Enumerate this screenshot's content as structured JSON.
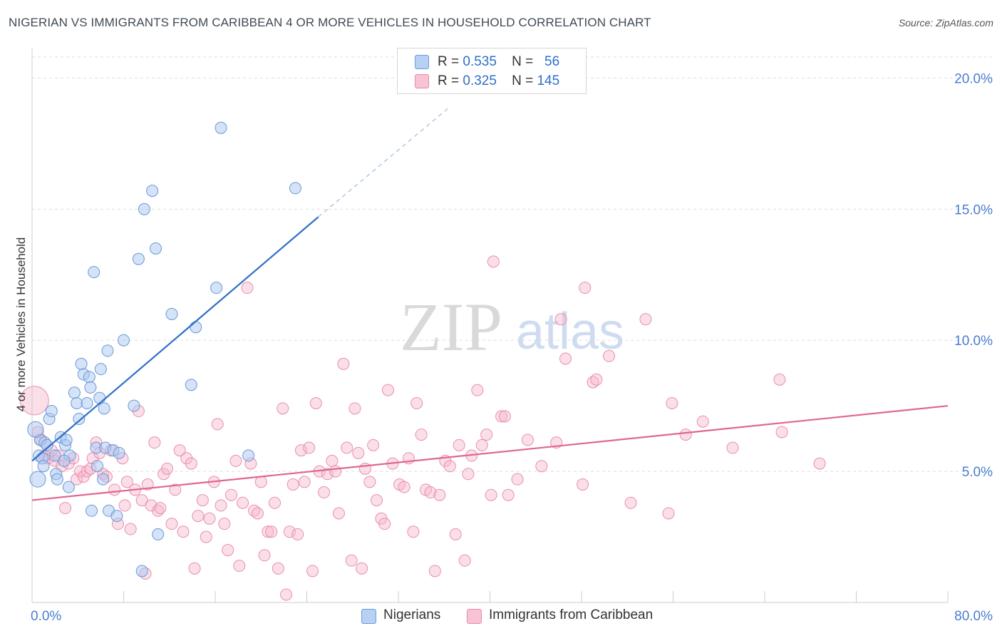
{
  "title": "NIGERIAN VS IMMIGRANTS FROM CARIBBEAN 4 OR MORE VEHICLES IN HOUSEHOLD CORRELATION CHART",
  "source": "Source: ZipAtlas.com",
  "watermark": {
    "zip": "ZIP",
    "atlas": "atlas"
  },
  "legend": {
    "series": [
      {
        "r_label": "R =",
        "r_value": "0.535",
        "n_label": "N =",
        "n_value": "56",
        "color": "#a9c8f0",
        "stroke": "#5b8fd6"
      },
      {
        "r_label": "R =",
        "r_value": "0.325",
        "n_label": "N =",
        "n_value": "145",
        "color": "#f7b8cc",
        "stroke": "#e77fa2"
      }
    ]
  },
  "bottom_legend": {
    "nigerians": "Nigerians",
    "caribbean": "Immigrants from Caribbean"
  },
  "chart_data": {
    "type": "scatter",
    "title": "NIGERIAN VS IMMIGRANTS FROM CARIBBEAN 4 OR MORE VEHICLES IN HOUSEHOLD CORRELATION CHART",
    "xlabel": "",
    "ylabel": "4 or more Vehicles in Household",
    "xlim": [
      0,
      80
    ],
    "ylim": [
      0,
      20.8
    ],
    "x_ticks": [
      "0.0%",
      "80.0%"
    ],
    "y_ticks": [
      {
        "value": 5,
        "label": "5.0%"
      },
      {
        "value": 10,
        "label": "10.0%"
      },
      {
        "value": 15,
        "label": "15.0%"
      },
      {
        "value": 20,
        "label": "20.0%"
      }
    ],
    "x_minor_ticks": [
      8,
      16,
      24,
      32,
      40,
      48,
      56,
      64,
      72,
      80
    ],
    "colors": {
      "nigerians": "#5b8fd6",
      "caribbean": "#e77fa2",
      "blue_line": "#2f6fc9",
      "pink_line": "#e06694",
      "axis_label": "#4a7fcf"
    },
    "series": [
      {
        "name": "Nigerians",
        "trend": {
          "x0": 0,
          "y0": 5.4,
          "x1": 25,
          "y1": 14.7,
          "dash_to_x": 36.5,
          "dash_to_y": 18.9
        },
        "points": [
          [
            0.5,
            4.7
          ],
          [
            0.6,
            5.6
          ],
          [
            0.7,
            6.2
          ],
          [
            0.9,
            5.5
          ],
          [
            1.1,
            6.1
          ],
          [
            1.3,
            6.0
          ],
          [
            1.5,
            7.0
          ],
          [
            1.7,
            7.3
          ],
          [
            2.0,
            5.6
          ],
          [
            2.1,
            4.9
          ],
          [
            2.2,
            4.7
          ],
          [
            2.5,
            6.3
          ],
          [
            2.9,
            6.0
          ],
          [
            3.2,
            4.4
          ],
          [
            3.3,
            5.6
          ],
          [
            3.7,
            8.0
          ],
          [
            3.9,
            7.6
          ],
          [
            4.1,
            7.0
          ],
          [
            4.3,
            9.1
          ],
          [
            4.5,
            8.7
          ],
          [
            4.8,
            7.6
          ],
          [
            5.0,
            8.6
          ],
          [
            5.1,
            8.2
          ],
          [
            5.2,
            3.5
          ],
          [
            5.4,
            12.6
          ],
          [
            5.6,
            5.9
          ],
          [
            5.9,
            7.8
          ],
          [
            6.0,
            8.9
          ],
          [
            6.2,
            4.7
          ],
          [
            6.3,
            7.4
          ],
          [
            6.4,
            5.9
          ],
          [
            6.6,
            9.6
          ],
          [
            6.7,
            3.5
          ],
          [
            7.1,
            5.8
          ],
          [
            7.4,
            3.3
          ],
          [
            7.6,
            5.7
          ],
          [
            8.0,
            10.0
          ],
          [
            8.9,
            7.5
          ],
          [
            9.3,
            13.1
          ],
          [
            9.6,
            1.2
          ],
          [
            9.8,
            15.0
          ],
          [
            10.5,
            15.7
          ],
          [
            10.8,
            13.5
          ],
          [
            11.0,
            2.6
          ],
          [
            12.2,
            11.0
          ],
          [
            13.9,
            8.3
          ],
          [
            14.3,
            10.5
          ],
          [
            16.1,
            12.0
          ],
          [
            16.5,
            18.1
          ],
          [
            18.9,
            5.6
          ],
          [
            23.0,
            15.8
          ],
          [
            0.3,
            6.6
          ],
          [
            1.0,
            5.2
          ],
          [
            2.8,
            5.4
          ],
          [
            3.0,
            6.2
          ],
          [
            5.7,
            5.2
          ]
        ]
      },
      {
        "name": "Immigrants from Caribbean",
        "trend": {
          "x0": 0,
          "y0": 3.9,
          "x1": 80,
          "y1": 7.5
        },
        "points": [
          [
            0.2,
            7.7
          ],
          [
            0.5,
            6.5
          ],
          [
            0.8,
            6.2
          ],
          [
            1.1,
            5.6
          ],
          [
            1.4,
            5.5
          ],
          [
            1.7,
            5.8
          ],
          [
            2.0,
            5.4
          ],
          [
            2.3,
            5.6
          ],
          [
            2.6,
            5.2
          ],
          [
            2.9,
            3.6
          ],
          [
            3.2,
            5.3
          ],
          [
            3.6,
            5.5
          ],
          [
            3.9,
            4.7
          ],
          [
            4.2,
            5.0
          ],
          [
            4.5,
            4.8
          ],
          [
            4.8,
            5.0
          ],
          [
            5.1,
            5.1
          ],
          [
            5.3,
            5.5
          ],
          [
            5.6,
            6.1
          ],
          [
            5.9,
            5.7
          ],
          [
            6.2,
            4.9
          ],
          [
            6.5,
            4.8
          ],
          [
            6.9,
            5.8
          ],
          [
            7.2,
            4.3
          ],
          [
            7.5,
            3.0
          ],
          [
            7.9,
            5.5
          ],
          [
            8.1,
            3.7
          ],
          [
            8.3,
            4.6
          ],
          [
            8.6,
            2.8
          ],
          [
            9.0,
            4.3
          ],
          [
            9.3,
            7.3
          ],
          [
            9.6,
            3.9
          ],
          [
            9.9,
            1.1
          ],
          [
            10.1,
            4.5
          ],
          [
            10.4,
            3.7
          ],
          [
            10.7,
            6.1
          ],
          [
            11.0,
            3.5
          ],
          [
            11.2,
            3.6
          ],
          [
            11.5,
            4.9
          ],
          [
            11.8,
            5.1
          ],
          [
            12.2,
            3.0
          ],
          [
            12.5,
            4.3
          ],
          [
            12.9,
            5.8
          ],
          [
            13.2,
            2.7
          ],
          [
            13.5,
            5.5
          ],
          [
            13.9,
            5.3
          ],
          [
            14.2,
            1.3
          ],
          [
            14.5,
            3.3
          ],
          [
            14.9,
            3.9
          ],
          [
            15.2,
            2.5
          ],
          [
            15.5,
            3.2
          ],
          [
            15.9,
            4.6
          ],
          [
            16.2,
            6.8
          ],
          [
            16.5,
            3.7
          ],
          [
            16.8,
            3.0
          ],
          [
            17.1,
            2.0
          ],
          [
            17.4,
            4.1
          ],
          [
            17.8,
            5.4
          ],
          [
            18.1,
            1.4
          ],
          [
            18.4,
            3.8
          ],
          [
            18.8,
            12.0
          ],
          [
            19.1,
            5.3
          ],
          [
            19.4,
            3.5
          ],
          [
            19.7,
            3.4
          ],
          [
            20.0,
            4.6
          ],
          [
            20.3,
            1.8
          ],
          [
            20.6,
            2.7
          ],
          [
            20.9,
            2.7
          ],
          [
            21.2,
            3.8
          ],
          [
            21.5,
            1.3
          ],
          [
            21.9,
            7.4
          ],
          [
            22.2,
            0.3
          ],
          [
            22.5,
            2.7
          ],
          [
            22.8,
            4.5
          ],
          [
            23.2,
            2.6
          ],
          [
            23.5,
            5.8
          ],
          [
            23.8,
            4.6
          ],
          [
            24.2,
            5.9
          ],
          [
            24.5,
            1.2
          ],
          [
            24.8,
            7.6
          ],
          [
            25.1,
            5.0
          ],
          [
            25.5,
            4.2
          ],
          [
            25.8,
            4.9
          ],
          [
            26.2,
            5.4
          ],
          [
            26.5,
            5.0
          ],
          [
            26.8,
            3.4
          ],
          [
            27.2,
            9.1
          ],
          [
            27.5,
            5.9
          ],
          [
            27.9,
            1.6
          ],
          [
            28.2,
            7.4
          ],
          [
            28.5,
            5.7
          ],
          [
            28.8,
            1.3
          ],
          [
            29.1,
            5.1
          ],
          [
            29.5,
            4.6
          ],
          [
            29.8,
            6.0
          ],
          [
            30.1,
            3.9
          ],
          [
            30.5,
            3.2
          ],
          [
            30.8,
            3.0
          ],
          [
            31.1,
            8.1
          ],
          [
            31.5,
            5.3
          ],
          [
            32.1,
            4.5
          ],
          [
            32.5,
            4.4
          ],
          [
            32.9,
            5.5
          ],
          [
            33.3,
            2.7
          ],
          [
            33.6,
            7.6
          ],
          [
            34.0,
            6.4
          ],
          [
            34.4,
            4.3
          ],
          [
            34.8,
            4.2
          ],
          [
            35.2,
            1.2
          ],
          [
            35.6,
            4.1
          ],
          [
            36.1,
            5.4
          ],
          [
            36.5,
            5.2
          ],
          [
            37.0,
            2.6
          ],
          [
            37.3,
            6.0
          ],
          [
            37.8,
            1.6
          ],
          [
            38.1,
            4.9
          ],
          [
            38.4,
            5.6
          ],
          [
            38.9,
            8.1
          ],
          [
            39.3,
            6.0
          ],
          [
            39.7,
            6.4
          ],
          [
            40.1,
            4.1
          ],
          [
            40.3,
            13.0
          ],
          [
            41.0,
            7.1
          ],
          [
            41.3,
            7.1
          ],
          [
            41.6,
            4.1
          ],
          [
            42.4,
            4.7
          ],
          [
            43.3,
            6.2
          ],
          [
            44.5,
            5.2
          ],
          [
            45.8,
            6.1
          ],
          [
            46.2,
            10.8
          ],
          [
            46.6,
            9.3
          ],
          [
            48.1,
            4.5
          ],
          [
            48.3,
            12.0
          ],
          [
            49.0,
            8.4
          ],
          [
            49.3,
            8.5
          ],
          [
            50.4,
            9.4
          ],
          [
            52.3,
            3.8
          ],
          [
            53.6,
            10.8
          ],
          [
            55.6,
            3.4
          ],
          [
            55.9,
            7.6
          ],
          [
            57.1,
            6.4
          ],
          [
            58.6,
            6.9
          ],
          [
            61.2,
            5.9
          ],
          [
            65.3,
            8.5
          ],
          [
            65.5,
            6.5
          ],
          [
            68.8,
            5.3
          ]
        ]
      }
    ]
  }
}
